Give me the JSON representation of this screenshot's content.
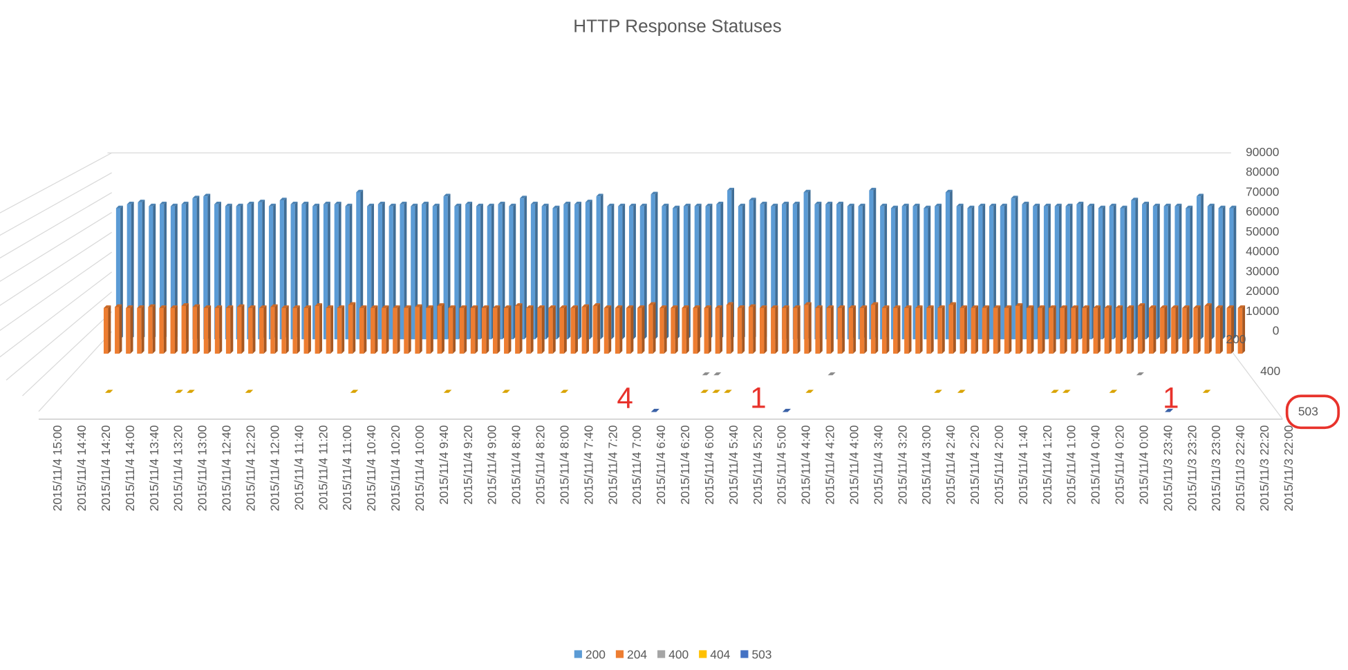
{
  "chart_data": {
    "type": "bar3d",
    "title": "HTTP Response Statuses",
    "categories": [
      "2015/11/4 15:00",
      null,
      "2015/11/4 14:40",
      null,
      "2015/11/4 14:20",
      null,
      "2015/11/4 14:00",
      null,
      "2015/11/4 13:40",
      null,
      "2015/11/4 13:20",
      null,
      "2015/11/4 13:00",
      null,
      "2015/11/4 12:40",
      null,
      "2015/11/4 12:20",
      null,
      "2015/11/4 12:00",
      null,
      "2015/11/4 11:40",
      null,
      "2015/11/4 11:20",
      null,
      "2015/11/4 11:00",
      null,
      "2015/11/4 10:40",
      null,
      "2015/11/4 10:20",
      null,
      "2015/11/4 10:00",
      null,
      "2015/11/4 9:40",
      null,
      "2015/11/4 9:20",
      null,
      "2015/11/4 9:00",
      null,
      "2015/11/4 8:40",
      null,
      "2015/11/4 8:20",
      null,
      "2015/11/4 8:00",
      null,
      "2015/11/4 7:40",
      null,
      "2015/11/4 7:20",
      null,
      "2015/11/4 7:00",
      null,
      "2015/11/4 6:40",
      null,
      "2015/11/4 6:20",
      null,
      "2015/11/4 6:00",
      null,
      "2015/11/4 5:40",
      null,
      "2015/11/4 5:20",
      null,
      "2015/11/4 5:00",
      null,
      "2015/11/4 4:40",
      null,
      "2015/11/4 4:20",
      null,
      "2015/11/4 4:00",
      null,
      "2015/11/4 3:40",
      null,
      "2015/11/4 3:20",
      null,
      "2015/11/4 3:00",
      null,
      "2015/11/4 2:40",
      null,
      "2015/11/4 2:20",
      null,
      "2015/11/4 2:00",
      null,
      "2015/11/4 1:40",
      null,
      "2015/11/4 1:20",
      null,
      "2015/11/4 1:00",
      null,
      "2015/11/4 0:40",
      null,
      "2015/11/4 0:20",
      null,
      "2015/11/4 0:00",
      null,
      "2015/11/3 23:40",
      null,
      "2015/11/3 23:20",
      null,
      "2015/11/3 23:00",
      null,
      "2015/11/3 22:40",
      null,
      "2015/11/3 22:20",
      null,
      "2015/11/3 22:00"
    ],
    "series": [
      {
        "name": "200",
        "color": "#5b9bd5",
        "values": [
          66000,
          68000,
          69000,
          67000,
          68000,
          67000,
          68000,
          71000,
          72000,
          68000,
          67000,
          67000,
          68000,
          69000,
          67000,
          70000,
          68000,
          68000,
          67000,
          68000,
          68000,
          67000,
          74000,
          67000,
          68000,
          67000,
          68000,
          67000,
          68000,
          67000,
          72000,
          67000,
          68000,
          67000,
          67000,
          68000,
          67000,
          71000,
          68000,
          67000,
          66000,
          68000,
          68000,
          69000,
          72000,
          67000,
          67000,
          67000,
          67000,
          73000,
          67000,
          66000,
          67000,
          67000,
          67000,
          68000,
          75000,
          67000,
          70000,
          68000,
          67000,
          68000,
          68000,
          74000,
          68000,
          68000,
          68000,
          67000,
          67000,
          75000,
          67000,
          66000,
          67000,
          67000,
          66000,
          67000,
          74000,
          67000,
          66000,
          67000,
          67000,
          67000,
          71000,
          68000,
          67000,
          67000,
          67000,
          67000,
          68000,
          67000,
          66000,
          67000,
          66000,
          70000,
          68000,
          67000,
          67000,
          67000,
          66000,
          72000,
          67000,
          66000,
          66000
        ]
      },
      {
        "name": "204",
        "color": "#ed7d31",
        "values": [
          22000,
          22500,
          22000,
          22000,
          22500,
          22000,
          22000,
          23000,
          22500,
          22000,
          22000,
          22000,
          22500,
          22000,
          22000,
          22500,
          22000,
          22000,
          22000,
          23000,
          22000,
          22000,
          23500,
          22000,
          22000,
          22000,
          22000,
          22000,
          22500,
          22000,
          23000,
          22000,
          22000,
          22000,
          22000,
          22000,
          22000,
          23000,
          22000,
          22000,
          22000,
          22000,
          22000,
          22500,
          23000,
          22000,
          22000,
          22000,
          22000,
          23500,
          22000,
          22000,
          22000,
          22000,
          22000,
          22000,
          23500,
          22000,
          22500,
          22000,
          22000,
          22000,
          22000,
          23500,
          22000,
          22000,
          22000,
          22000,
          22000,
          23500,
          22000,
          22000,
          22000,
          22000,
          22000,
          22000,
          23500,
          22000,
          22000,
          22000,
          22000,
          22000,
          23000,
          22000,
          22000,
          22000,
          22000,
          22000,
          22000,
          22000,
          22000,
          22000,
          22000,
          23000,
          22000,
          22000,
          22000,
          22000,
          22000,
          23000,
          22000,
          22000,
          22000
        ]
      },
      {
        "name": "400",
        "color": "#a5a5a5",
        "values": [
          0,
          0,
          0,
          0,
          0,
          0,
          0,
          0,
          0,
          0,
          0,
          0,
          0,
          0,
          0,
          0,
          0,
          0,
          0,
          0,
          0,
          0,
          0,
          0,
          0,
          0,
          0,
          0,
          0,
          0,
          0,
          0,
          0,
          0,
          0,
          0,
          0,
          0,
          0,
          0,
          0,
          0,
          0,
          0,
          0,
          0,
          0,
          0,
          0,
          0,
          0,
          0,
          0,
          0,
          1,
          1,
          0,
          0,
          0,
          0,
          0,
          0,
          0,
          0,
          0,
          1,
          0,
          0,
          0,
          0,
          0,
          0,
          0,
          0,
          0,
          0,
          0,
          0,
          0,
          0,
          0,
          0,
          0,
          0,
          0,
          0,
          0,
          0,
          0,
          0,
          0,
          0,
          1,
          0,
          0,
          0,
          0,
          0,
          0,
          0,
          0,
          0,
          0
        ]
      },
      {
        "name": "404",
        "color": "#ffc000",
        "values": [
          0,
          0,
          0,
          1,
          0,
          0,
          0,
          0,
          0,
          1,
          1,
          0,
          0,
          0,
          0,
          1,
          0,
          0,
          0,
          0,
          0,
          0,
          0,
          0,
          1,
          0,
          0,
          0,
          0,
          0,
          0,
          0,
          1,
          0,
          0,
          0,
          0,
          1,
          0,
          0,
          0,
          0,
          1,
          0,
          0,
          0,
          0,
          0,
          0,
          0,
          0,
          0,
          0,
          0,
          1,
          1,
          1,
          0,
          0,
          0,
          0,
          0,
          0,
          1,
          0,
          0,
          0,
          0,
          0,
          0,
          0,
          0,
          0,
          0,
          1,
          0,
          1,
          0,
          0,
          0,
          0,
          0,
          0,
          0,
          1,
          1,
          0,
          0,
          0,
          1,
          0,
          0,
          0,
          0,
          0,
          0,
          0,
          1,
          0,
          0,
          0,
          0,
          0
        ]
      },
      {
        "name": "503",
        "color": "#4472c4",
        "values": [
          0,
          0,
          0,
          0,
          0,
          0,
          0,
          0,
          0,
          0,
          0,
          0,
          0,
          0,
          0,
          0,
          0,
          0,
          0,
          0,
          0,
          0,
          0,
          0,
          0,
          0,
          0,
          0,
          0,
          0,
          0,
          0,
          0,
          0,
          0,
          0,
          0,
          0,
          0,
          0,
          0,
          0,
          0,
          0,
          0,
          0,
          0,
          0,
          0,
          0,
          4,
          0,
          0,
          0,
          0,
          0,
          0,
          0,
          0,
          0,
          0,
          1,
          0,
          0,
          0,
          0,
          0,
          0,
          0,
          0,
          0,
          0,
          0,
          0,
          0,
          0,
          0,
          0,
          0,
          0,
          0,
          0,
          0,
          0,
          0,
          0,
          0,
          0,
          0,
          0,
          0,
          0,
          0,
          1,
          0,
          0,
          0,
          0,
          0,
          0,
          0,
          0,
          0
        ]
      }
    ],
    "ylim": [
      0,
      90000
    ],
    "yticks": [
      0,
      10000,
      20000,
      30000,
      40000,
      50000,
      60000,
      70000,
      80000,
      90000
    ],
    "grid": true,
    "legend": "bottom",
    "annotations": [
      "4",
      "1",
      "1"
    ]
  }
}
